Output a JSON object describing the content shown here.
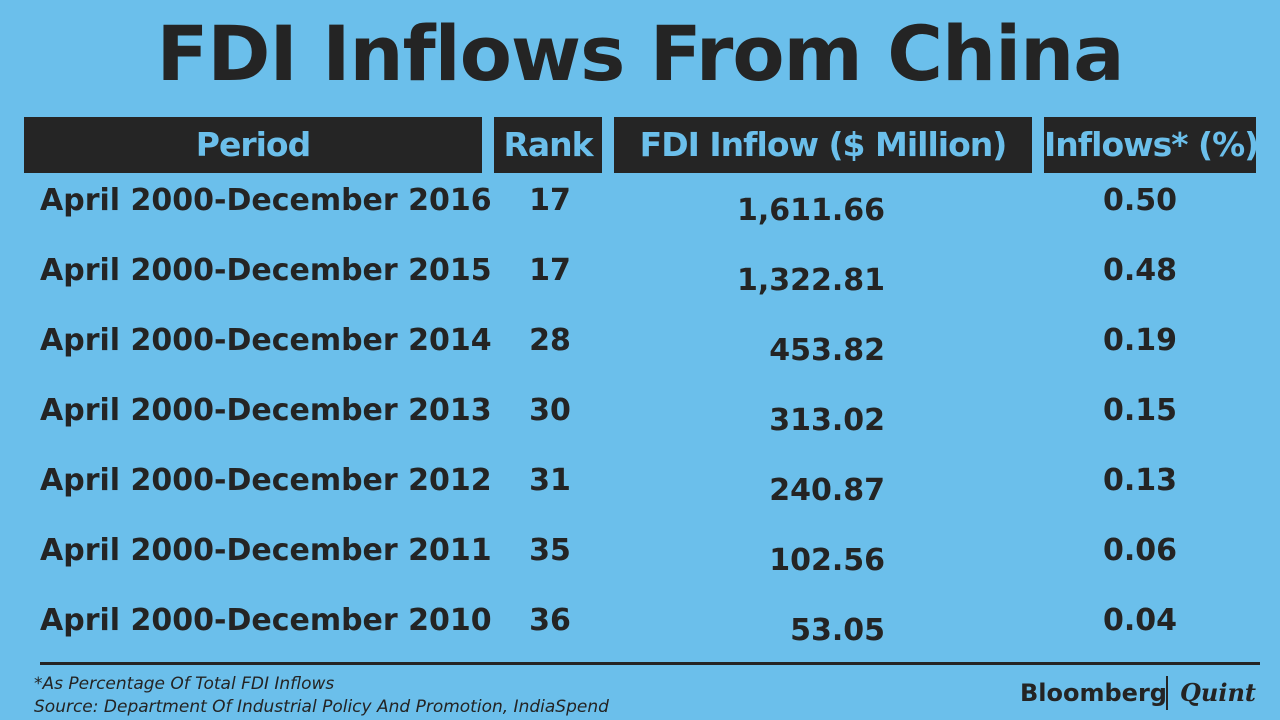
{
  "title": "FDI Inflows From China",
  "headers": {
    "period": "Period",
    "rank": "Rank",
    "fdi": "FDI Inflow ($ Million)",
    "pct": "Inflows* (%)"
  },
  "chart_data": {
    "type": "table",
    "title": "FDI Inflows From China",
    "columns": [
      "Period",
      "Rank",
      "FDI Inflow ($ Million)",
      "Inflows* (%)"
    ],
    "rows": [
      {
        "period": "April 2000-December 2016",
        "rank": "17",
        "fdi": "1,611.66",
        "pct": "0.50"
      },
      {
        "period": "April 2000-December 2015",
        "rank": "17",
        "fdi": "1,322.81",
        "pct": "0.48"
      },
      {
        "period": "April 2000-December 2014",
        "rank": "28",
        "fdi": "453.82",
        "pct": "0.19"
      },
      {
        "period": "April 2000-December 2013",
        "rank": "30",
        "fdi": "313.02",
        "pct": "0.15"
      },
      {
        "period": "April 2000-December 2012",
        "rank": "31",
        "fdi": "240.87",
        "pct": "0.13"
      },
      {
        "period": "April 2000-December 2011",
        "rank": "35",
        "fdi": "102.56",
        "pct": "0.06"
      },
      {
        "period": "April 2000-December 2010",
        "rank": "36",
        "fdi": "53.05",
        "pct": "0.04"
      }
    ]
  },
  "footnote": "*As Percentage Of Total FDI Inflows",
  "source": "Source: Department Of Industrial Policy And Promotion, IndiaSpend",
  "brand": {
    "left": "Bloomberg",
    "right": "Quint"
  },
  "colors": {
    "background": "#6bbfeb",
    "header_bg": "#252525",
    "text": "#242424"
  }
}
